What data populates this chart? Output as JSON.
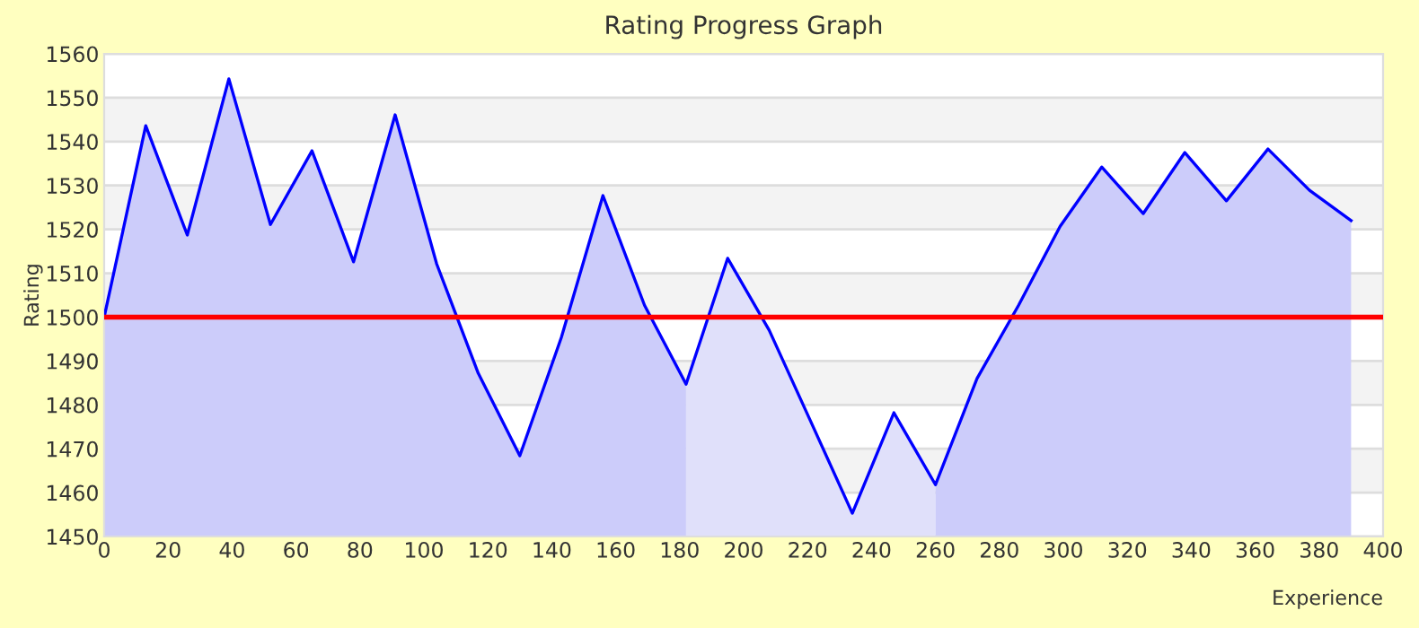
{
  "chart_data": {
    "type": "area",
    "title": "Rating Progress Graph",
    "xlabel": "Experience",
    "ylabel": "Rating",
    "series": [
      {
        "color": "#ccccfa",
        "x": [
          0,
          13,
          26,
          39,
          52,
          65,
          78,
          91,
          104,
          117,
          130,
          143,
          156,
          169,
          182
        ],
        "values": [
          1500,
          1543.6,
          1518.7,
          1554.3,
          1521.1,
          1537.9,
          1512.6,
          1546.1,
          1512.1,
          1487.2,
          1468.4,
          1495.4,
          1527.7,
          1502.7,
          1484.7
        ]
      },
      {
        "color": "#e0e0fa",
        "x": [
          182,
          195,
          208,
          221,
          234,
          247,
          260
        ],
        "values": [
          1484.7,
          1513.4,
          1497,
          1476.2,
          1455.3,
          1478.2,
          1461.8
        ]
      },
      {
        "color": "#ccccfa",
        "x": [
          260,
          273,
          286,
          299,
          312,
          325,
          338,
          351,
          364,
          377,
          390
        ],
        "values": [
          1461.8,
          1486,
          1502.7,
          1520.7,
          1534.2,
          1523.6,
          1537.5,
          1526.5,
          1538.3,
          1528.9,
          1522
        ]
      },
      {
        "type": "line",
        "color": "#0000ff",
        "x": [
          0,
          13,
          26,
          39,
          52,
          65,
          78,
          91,
          104,
          117,
          130,
          143,
          156,
          169,
          182,
          195,
          208,
          221,
          234,
          247,
          260,
          273,
          286,
          299,
          312,
          325,
          338,
          351,
          364,
          377,
          390
        ],
        "values": [
          1500,
          1543.6,
          1518.7,
          1554.3,
          1521.1,
          1537.9,
          1512.6,
          1546.1,
          1512.1,
          1487.2,
          1468.4,
          1495.4,
          1527.7,
          1502.7,
          1484.7,
          1513.4,
          1497,
          1476.2,
          1455.3,
          1478.2,
          1461.8,
          1486,
          1502.7,
          1520.7,
          1534.2,
          1523.6,
          1537.5,
          1526.5,
          1538.3,
          1528.9,
          1522
        ]
      }
    ],
    "xlim": [
      0,
      400
    ],
    "xticks": [
      0,
      20,
      40,
      60,
      80,
      100,
      120,
      140,
      160,
      180,
      200,
      220,
      240,
      260,
      280,
      300,
      320,
      340,
      360,
      380,
      400
    ],
    "ylim": [
      1450,
      1560
    ],
    "yticks": [
      1450,
      1460,
      1470,
      1480,
      1490,
      1500,
      1510,
      1520,
      1530,
      1540,
      1550,
      1560
    ],
    "grid": "y",
    "legend": false,
    "marker": "none",
    "line_style": "solid",
    "ref_lines": [
      {
        "axis": "y",
        "value": 1500,
        "color": "#ff0000"
      }
    ]
  }
}
